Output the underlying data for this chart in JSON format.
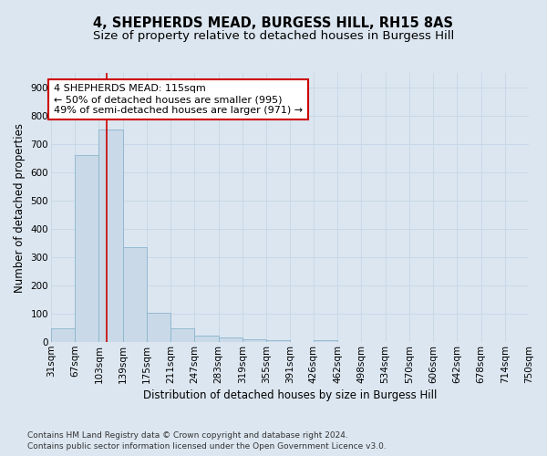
{
  "title": "4, SHEPHERDS MEAD, BURGESS HILL, RH15 8AS",
  "subtitle": "Size of property relative to detached houses in Burgess Hill",
  "xlabel": "Distribution of detached houses by size in Burgess Hill",
  "ylabel": "Number of detached properties",
  "footer_line1": "Contains HM Land Registry data © Crown copyright and database right 2024.",
  "footer_line2": "Contains public sector information licensed under the Open Government Licence v3.0.",
  "bin_edges": [
    31,
    67,
    103,
    139,
    175,
    211,
    247,
    283,
    319,
    355,
    391,
    426,
    462,
    498,
    534,
    570,
    606,
    642,
    678,
    714,
    750
  ],
  "bar_heights": [
    50,
    660,
    750,
    335,
    105,
    50,
    22,
    15,
    10,
    7,
    0,
    7,
    0,
    0,
    0,
    0,
    0,
    0,
    0,
    0
  ],
  "bar_color": "#c9d9e8",
  "bar_edge_color": "#8ab4cc",
  "property_size": 115,
  "vline_color": "#cc0000",
  "annotation_text": "4 SHEPHERDS MEAD: 115sqm\n← 50% of detached houses are smaller (995)\n49% of semi-detached houses are larger (971) →",
  "annotation_box_color": "#ffffff",
  "annotation_box_edgecolor": "#cc0000",
  "ylim": [
    0,
    950
  ],
  "yticks": [
    0,
    100,
    200,
    300,
    400,
    500,
    600,
    700,
    800,
    900
  ],
  "grid_color": "#c8d8e8",
  "background_color": "#dce6f0",
  "plot_background_color": "#dce6f0",
  "title_fontsize": 10.5,
  "subtitle_fontsize": 9.5,
  "axis_label_fontsize": 8.5,
  "tick_fontsize": 7.5,
  "annotation_fontsize": 8,
  "footer_fontsize": 6.5
}
